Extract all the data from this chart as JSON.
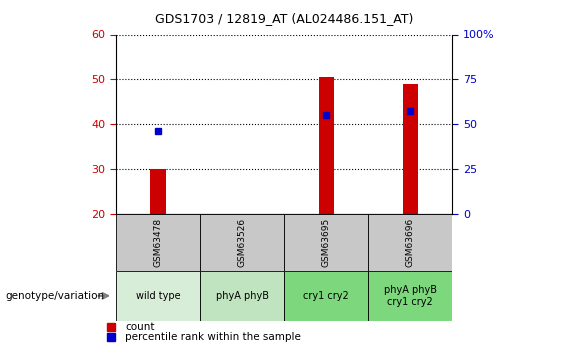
{
  "title": "GDS1703 / 12819_AT (AL024486.151_AT)",
  "samples": [
    "GSM63478",
    "GSM63526",
    "GSM63695",
    "GSM63696"
  ],
  "genotype_labels": [
    "wild type",
    "phyA phyB",
    "cry1 cry2",
    "phyA phyB\ncry1 cry2"
  ],
  "genotype_colors": [
    "#d8edd8",
    "#c0e4c0",
    "#7dd87d",
    "#7dd87d"
  ],
  "count_values": [
    30,
    20,
    50.5,
    49
  ],
  "count_baseline": 20,
  "percentile_values": [
    38.5,
    null,
    42,
    43
  ],
  "ylim_left": [
    20,
    60
  ],
  "yticks_left": [
    20,
    30,
    40,
    50,
    60
  ],
  "ylim_right": [
    0,
    100
  ],
  "yticks_right": [
    0,
    25,
    50,
    75,
    100
  ],
  "bar_color": "#cc0000",
  "dot_color": "#0000cc",
  "bar_width": 0.18,
  "grid_linestyle": "dotted",
  "grid_color": "black",
  "left_tick_color": "#cc0000",
  "right_tick_color": "#0000cc",
  "legend_count_label": "count",
  "legend_percentile_label": "percentile rank within the sample",
  "genotype_label_text": "genotype/variation",
  "sample_box_color": "#c8c8c8",
  "title_fontsize": 9,
  "tick_fontsize": 8,
  "sample_fontsize": 6.5,
  "geno_fontsize": 7
}
